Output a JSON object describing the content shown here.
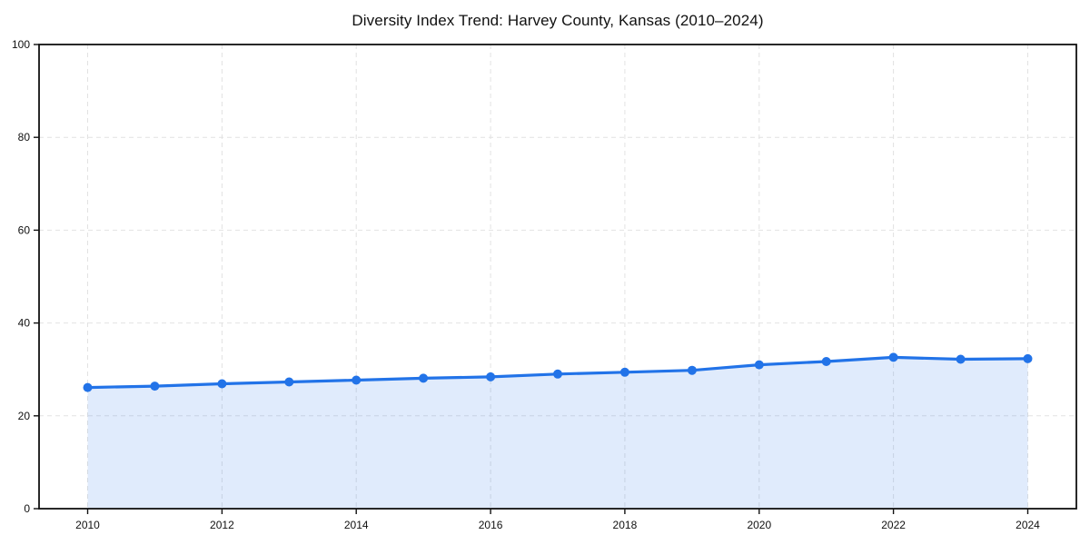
{
  "page": {
    "background_color": "#ffffff"
  },
  "chart_data": {
    "type": "line",
    "title": "Diversity Index Trend: Harvey County, Kansas (2010–2024)",
    "xlabel": "",
    "ylabel": "",
    "x": [
      2010,
      2011,
      2012,
      2013,
      2014,
      2015,
      2016,
      2017,
      2018,
      2019,
      2020,
      2021,
      2022,
      2023,
      2024
    ],
    "series": [
      {
        "name": "Diversity Index",
        "values": [
          26.1,
          26.4,
          26.9,
          27.3,
          27.7,
          28.1,
          28.4,
          29.0,
          29.4,
          29.8,
          31.0,
          31.7,
          32.6,
          32.2,
          32.3
        ]
      }
    ],
    "ylim": [
      0,
      100
    ],
    "yticks": [
      0,
      20,
      40,
      60,
      80,
      100
    ],
    "xticks": [
      2010,
      2012,
      2014,
      2016,
      2018,
      2020,
      2022,
      2024
    ],
    "grid": true,
    "grid_style": "dashed",
    "legend_position": "none",
    "area_fill": true,
    "line_color": "#2273e8",
    "fill_color": "#2273e8",
    "fill_opacity": 0.14,
    "marker_radius": 5,
    "line_width": 3.2,
    "grid_color": "#e2e2e2",
    "axis_color": "#111111",
    "text_color": "#111111",
    "tick_font_size": 12,
    "title_font_size": 17
  }
}
